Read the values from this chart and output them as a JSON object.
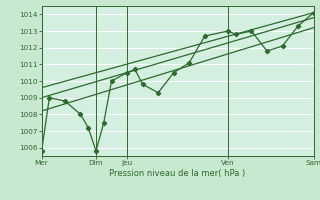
{
  "title": "",
  "xlabel": "Pression niveau de la mer( hPa )",
  "ylabel": "",
  "bg_color": "#c8e8d0",
  "plot_bg_color": "#d4eee0",
  "grid_color": "#b0d8b8",
  "line_color": "#2d6a2d",
  "ylim": [
    1005.5,
    1014.5
  ],
  "yticks": [
    1006,
    1007,
    1008,
    1009,
    1010,
    1011,
    1012,
    1013,
    1014
  ],
  "series1_x": [
    0,
    0.5,
    1.5,
    2.5,
    3.0,
    3.5,
    4.0,
    4.5,
    5.5,
    6.0,
    6.5,
    7.5,
    8.5,
    9.5,
    10.5,
    12.0,
    12.5,
    13.5,
    14.5,
    15.5,
    16.5,
    17.5
  ],
  "series1_y": [
    1005.8,
    1009.0,
    1008.8,
    1008.0,
    1007.2,
    1005.8,
    1007.5,
    1010.0,
    1010.5,
    1010.7,
    1009.8,
    1009.3,
    1010.5,
    1011.1,
    1012.7,
    1013.0,
    1012.8,
    1013.0,
    1011.8,
    1012.1,
    1013.3,
    1014.1
  ],
  "series2_x": [
    0,
    17.5
  ],
  "series2_y": [
    1008.2,
    1013.2
  ],
  "series3_x": [
    0,
    17.5
  ],
  "series3_y": [
    1009.0,
    1013.8
  ],
  "series4_x": [
    0,
    17.5
  ],
  "series4_y": [
    1009.6,
    1014.1
  ],
  "vlines_x": [
    0,
    3.5,
    5.5,
    12.0,
    17.5
  ],
  "tick_label_positions": [
    0,
    3.5,
    5.5,
    12.0,
    17.5
  ],
  "tick_labels": [
    "Mer",
    "Dim",
    "Jeu",
    "Ven",
    "Sam"
  ],
  "xlim": [
    0,
    17.5
  ]
}
